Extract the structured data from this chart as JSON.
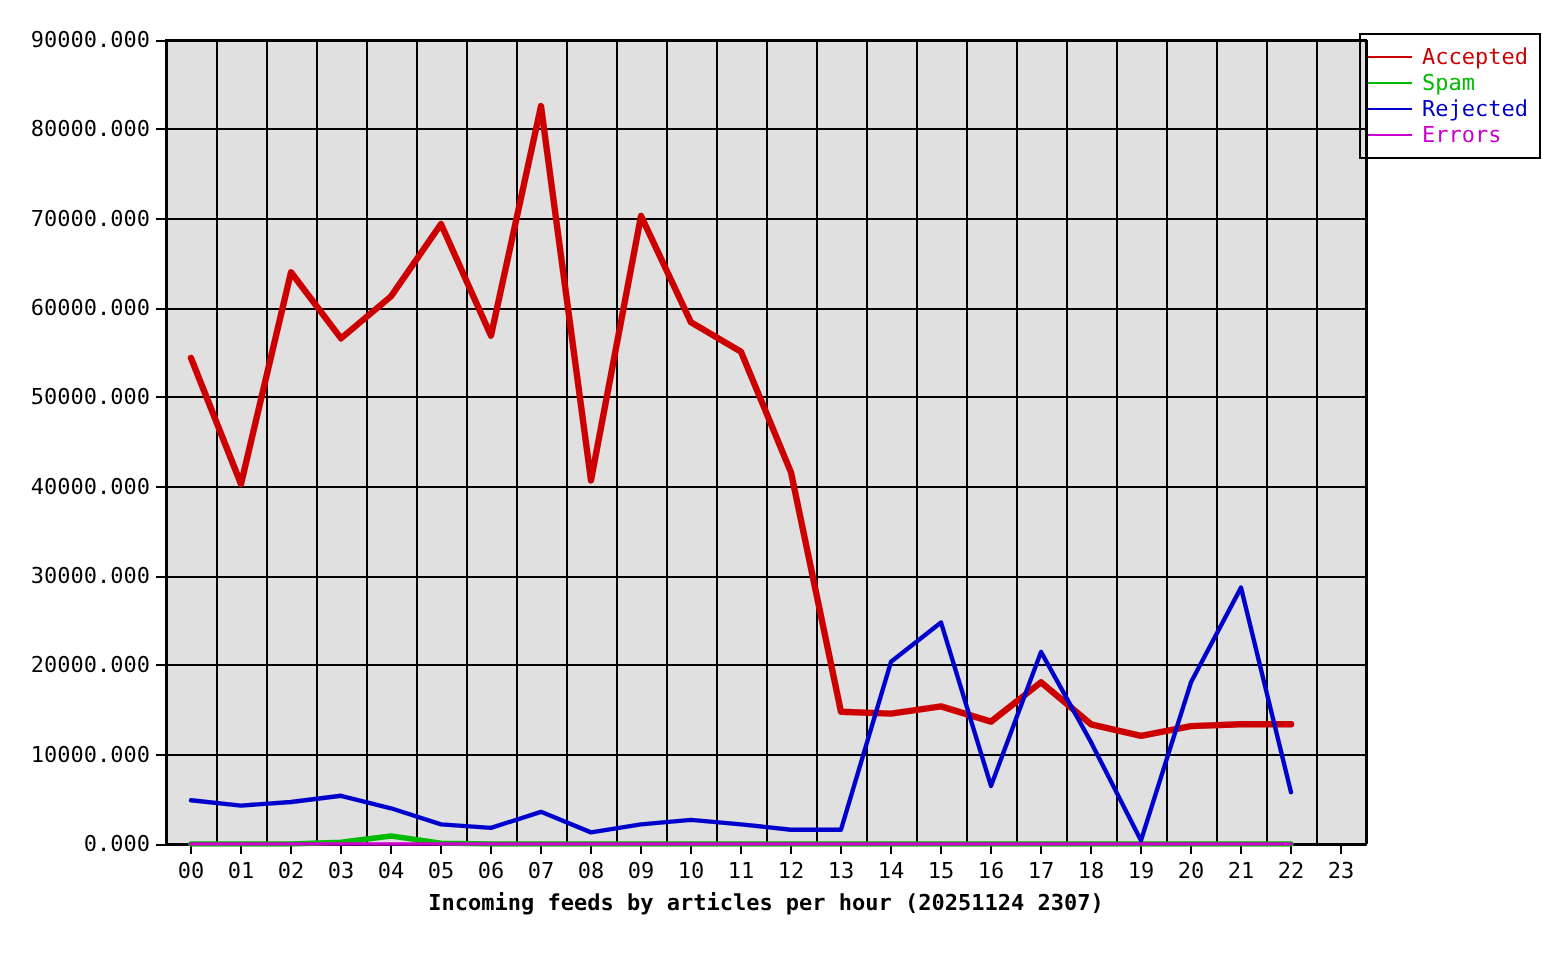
{
  "chart_data": {
    "type": "line",
    "xlabel": "Incoming feeds by articles per hour (20251124 2307)",
    "categories": [
      "00",
      "01",
      "02",
      "03",
      "04",
      "05",
      "06",
      "07",
      "08",
      "09",
      "10",
      "11",
      "12",
      "13",
      "14",
      "15",
      "16",
      "17",
      "18",
      "19",
      "20",
      "21",
      "22",
      "23"
    ],
    "series": [
      {
        "name": "Accepted",
        "color": "#cc0000",
        "values": [
          54400,
          40300,
          64000,
          56600,
          61300,
          69400,
          56900,
          82600,
          40700,
          70300,
          58400,
          55100,
          41600,
          14800,
          14600,
          15400,
          13700,
          18100,
          13400,
          12100,
          13200,
          13400,
          13400,
          null
        ]
      },
      {
        "name": "Spam",
        "color": "#00bb00",
        "values": [
          0,
          0,
          0,
          200,
          900,
          100,
          0,
          0,
          0,
          0,
          0,
          0,
          0,
          0,
          0,
          0,
          0,
          0,
          0,
          0,
          0,
          0,
          0,
          null
        ]
      },
      {
        "name": "Rejected",
        "color": "#0000cc",
        "values": [
          4900,
          4300,
          4700,
          5400,
          4000,
          2200,
          1800,
          3600,
          1300,
          2200,
          2700,
          2200,
          1600,
          1600,
          20400,
          24800,
          6500,
          21500,
          11400,
          400,
          18100,
          28700,
          5800,
          null
        ]
      },
      {
        "name": "Errors",
        "color": "#cc00cc",
        "values": [
          0,
          0,
          0,
          0,
          0,
          0,
          0,
          0,
          0,
          0,
          0,
          0,
          0,
          0,
          0,
          0,
          0,
          0,
          0,
          0,
          0,
          0,
          0,
          null
        ]
      }
    ],
    "ylim": [
      0,
      90000
    ],
    "yticks": [
      {
        "value": 0,
        "label": "0.000"
      },
      {
        "value": 10000,
        "label": "10000.000"
      },
      {
        "value": 20000,
        "label": "20000.000"
      },
      {
        "value": 30000,
        "label": "30000.000"
      },
      {
        "value": 40000,
        "label": "40000.000"
      },
      {
        "value": 50000,
        "label": "50000.000"
      },
      {
        "value": 60000,
        "label": "60000.000"
      },
      {
        "value": 70000,
        "label": "70000.000"
      },
      {
        "value": 80000,
        "label": "80000.000"
      },
      {
        "value": 90000,
        "label": "90000.000"
      }
    ],
    "grid": true,
    "legend": "top right"
  }
}
